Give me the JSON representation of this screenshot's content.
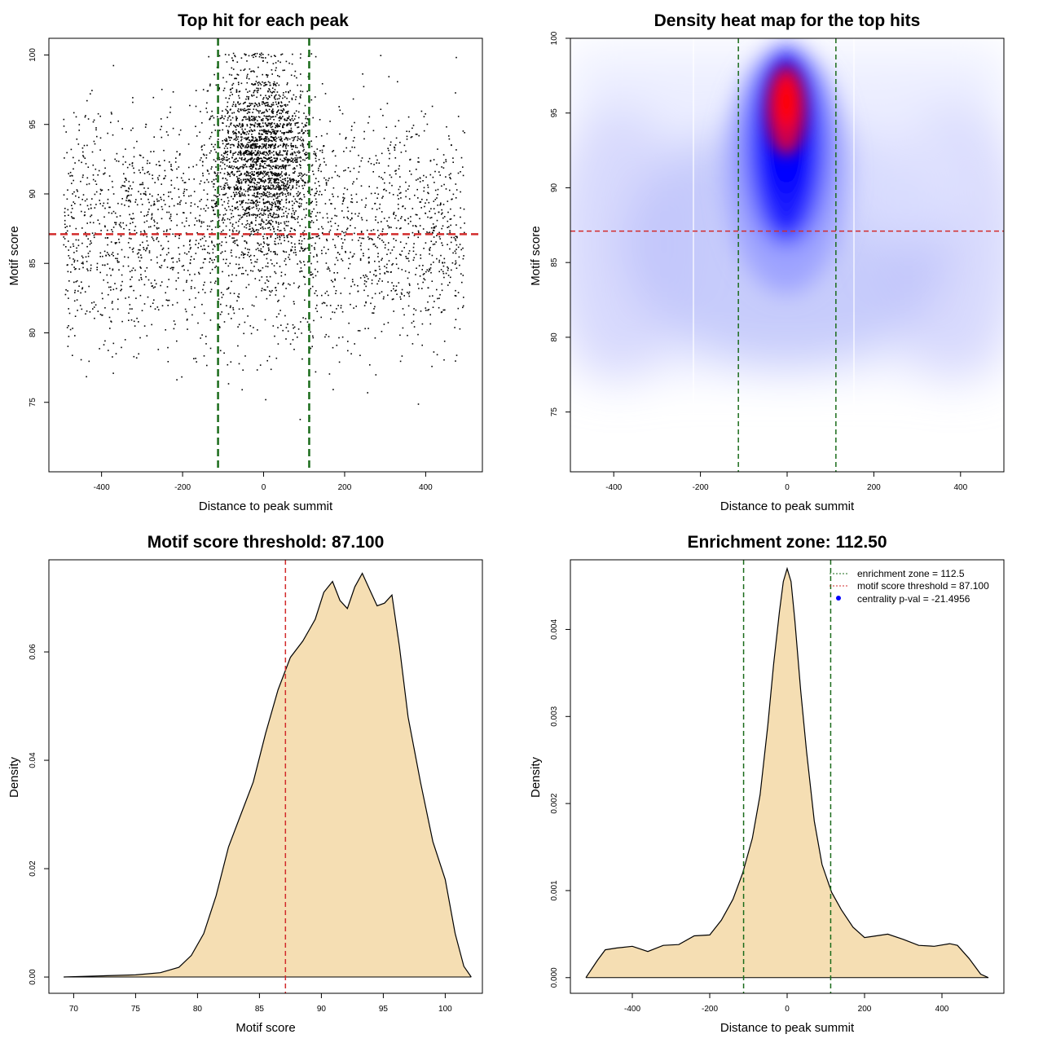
{
  "colors": {
    "green": "#1a6b1a",
    "red": "#d22b2b",
    "fill": "#f5deb3",
    "black": "#000000",
    "heat_low": "#ffffff",
    "heat_mid": "#0000ff",
    "heat_high": "#ff0000"
  },
  "chart_data": [
    {
      "type": "scatter",
      "title": "Top hit for each peak",
      "xlabel": "Distance to peak summit",
      "ylabel": "Motif score",
      "xlim": [
        -530,
        540
      ],
      "ylim": [
        70,
        101.2
      ],
      "xticks": [
        -400,
        -200,
        0,
        200,
        400
      ],
      "yticks": [
        75,
        80,
        85,
        90,
        95,
        100
      ],
      "vlines": [
        -112.5,
        112.5
      ],
      "hline": 87.1,
      "grid": false,
      "point_summary": {
        "count_approx": 4500,
        "x_range": [
          -500,
          500
        ],
        "y_range": [
          71,
          100
        ],
        "dense_center": true
      }
    },
    {
      "type": "heatmap",
      "title": "Density heat map for the top hits",
      "xlabel": "Distance to peak summit",
      "ylabel": "Motif score",
      "xlim": [
        -500,
        500
      ],
      "ylim": [
        71,
        100
      ],
      "xticks": [
        -400,
        -200,
        0,
        200,
        400
      ],
      "yticks": [
        75,
        80,
        85,
        90,
        95,
        100
      ],
      "vlines": [
        -112.5,
        112.5
      ],
      "hline": 87.1,
      "hotspot": {
        "x": 0,
        "y": 95
      },
      "color_scale": [
        "white",
        "blue",
        "red"
      ]
    },
    {
      "type": "area",
      "title": "Motif score threshold: 87.100",
      "xlabel": "Motif score",
      "ylabel": "Density",
      "xlim": [
        68,
        103
      ],
      "ylim": [
        -0.003,
        0.077
      ],
      "xticks": [
        70,
        75,
        80,
        85,
        90,
        95,
        100
      ],
      "yticks": [
        0.0,
        0.02,
        0.04,
        0.06
      ],
      "vline": 87.1,
      "x": [
        69.2,
        72,
        75,
        77,
        78.5,
        79.5,
        80.5,
        81.5,
        82.5,
        83.5,
        84.5,
        85.5,
        86.5,
        87.5,
        88.5,
        89.5,
        90.2,
        90.9,
        91.5,
        92.1,
        92.7,
        93.3,
        93.9,
        94.5,
        95.1,
        95.7,
        96.3,
        97,
        98,
        99,
        100,
        100.8,
        101.5,
        102.1
      ],
      "y": [
        0.0,
        0.0002,
        0.0004,
        0.0008,
        0.0018,
        0.004,
        0.008,
        0.015,
        0.024,
        0.03,
        0.036,
        0.045,
        0.053,
        0.059,
        0.062,
        0.066,
        0.071,
        0.073,
        0.0695,
        0.068,
        0.072,
        0.0745,
        0.0715,
        0.0685,
        0.069,
        0.0705,
        0.061,
        0.048,
        0.036,
        0.025,
        0.018,
        0.008,
        0.002,
        0.0
      ]
    },
    {
      "type": "area",
      "title": "Enrichment zone: 112.50",
      "xlabel": "Distance to peak summit",
      "ylabel": "Density",
      "xlim": [
        -560,
        560
      ],
      "ylim": [
        -0.00018,
        0.0048
      ],
      "xticks": [
        -400,
        -200,
        0,
        200,
        400
      ],
      "yticks": [
        0.0,
        0.001,
        0.002,
        0.003,
        0.004
      ],
      "vlines": [
        -112.5,
        112.5
      ],
      "x": [
        -520,
        -490,
        -470,
        -440,
        -400,
        -360,
        -320,
        -280,
        -240,
        -200,
        -170,
        -140,
        -115,
        -90,
        -70,
        -50,
        -35,
        -20,
        -10,
        0,
        10,
        20,
        35,
        50,
        70,
        90,
        115,
        140,
        170,
        200,
        230,
        260,
        300,
        340,
        380,
        420,
        440,
        470,
        500,
        520
      ],
      "y": [
        0.0,
        0.0002,
        0.00032,
        0.00034,
        0.00036,
        0.0003,
        0.00037,
        0.00038,
        0.00048,
        0.00049,
        0.00066,
        0.0009,
        0.0012,
        0.0016,
        0.0021,
        0.0029,
        0.0036,
        0.0042,
        0.00455,
        0.0047,
        0.00455,
        0.0041,
        0.0033,
        0.0026,
        0.0018,
        0.0013,
        0.00098,
        0.00078,
        0.00058,
        0.00046,
        0.00048,
        0.0005,
        0.00044,
        0.00037,
        0.00036,
        0.00039,
        0.00037,
        0.00022,
        4e-05,
        0.0
      ]
    }
  ],
  "legend": {
    "position": "top-right",
    "items": [
      "enrichment zone = 112.5",
      "motif score threshold = 87.100",
      "centrality p-val = -21.4956"
    ]
  }
}
